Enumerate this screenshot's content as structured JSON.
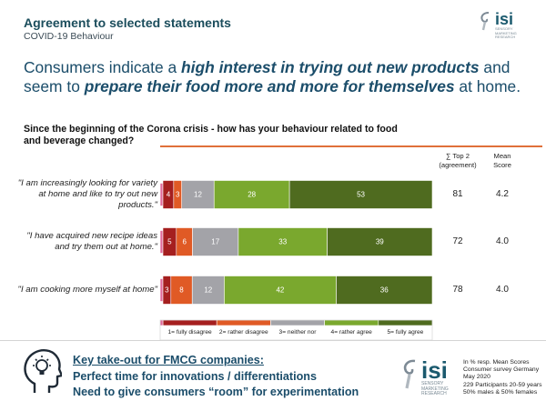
{
  "header": {
    "title": "Agreement to selected statements",
    "subtitle": "COVID-19 Behaviour"
  },
  "logo": {
    "brand": "isi",
    "tagline": [
      "SENSORY",
      "MARKETING",
      "RESEARCH"
    ]
  },
  "headline": {
    "p1": "Consumers indicate a ",
    "e1": "high interest in trying out new products",
    "p2": " and seem to ",
    "e2": "prepare their food more and more for themselves",
    "p3": " at home."
  },
  "question": "Since the beginning of the Corona crisis - how has your behaviour related to food and beverage changed?",
  "columns": {
    "top2": [
      "∑ Top 2",
      "(agreement)"
    ],
    "mean": [
      "Mean",
      "Score"
    ]
  },
  "colors": {
    "fully_disagree": "#a51f1f",
    "rather_disagree": "#e05a25",
    "neither_nor": "#a3a3a8",
    "rather_agree": "#7aa82e",
    "fully_agree": "#4f6b1f",
    "accent_pink": "#e06a9a"
  },
  "chart_data": {
    "type": "bar",
    "orientation": "horizontal",
    "stacked": true,
    "categories": [
      "\"I am increasingly looking for variety at home and like to try out new products.\"",
      "\"I have acquired new recipe ideas and try them out at home.\"",
      "\"I am cooking more myself at home\""
    ],
    "label_lines": [
      [
        "\"I am increasingly looking for variety",
        "at home and like to try out new",
        "products.\""
      ],
      [
        "\"I have acquired new recipe ideas",
        "and try them out at home.\""
      ],
      [
        "\"I am cooking more myself at home\""
      ]
    ],
    "series": [
      {
        "name": "1= fully disagree",
        "values": [
          4,
          5,
          3
        ]
      },
      {
        "name": "2= rather disagree",
        "values": [
          3,
          6,
          8
        ]
      },
      {
        "name": "3= neither nor",
        "values": [
          12,
          17,
          12
        ]
      },
      {
        "name": "4= rather agree",
        "values": [
          28,
          33,
          42
        ]
      },
      {
        "name": "5= fully agree",
        "values": [
          53,
          39,
          36
        ]
      }
    ],
    "top2": [
      81,
      72,
      78
    ],
    "mean": [
      "4.2",
      "4.0",
      "4.0"
    ],
    "legend_position": "bottom",
    "units": "%"
  },
  "takeaway": {
    "title": "Key take-out for FMCG companies:",
    "line1": "Perfect time for innovations / differentiations",
    "line2": "Need to give consumers “room” for experimentation"
  },
  "footnote": [
    "In % resp. Mean Scores",
    "Consumer survey Germany",
    "May 2020",
    "229 Participants 20-59 years",
    "50% males & 50% females"
  ]
}
